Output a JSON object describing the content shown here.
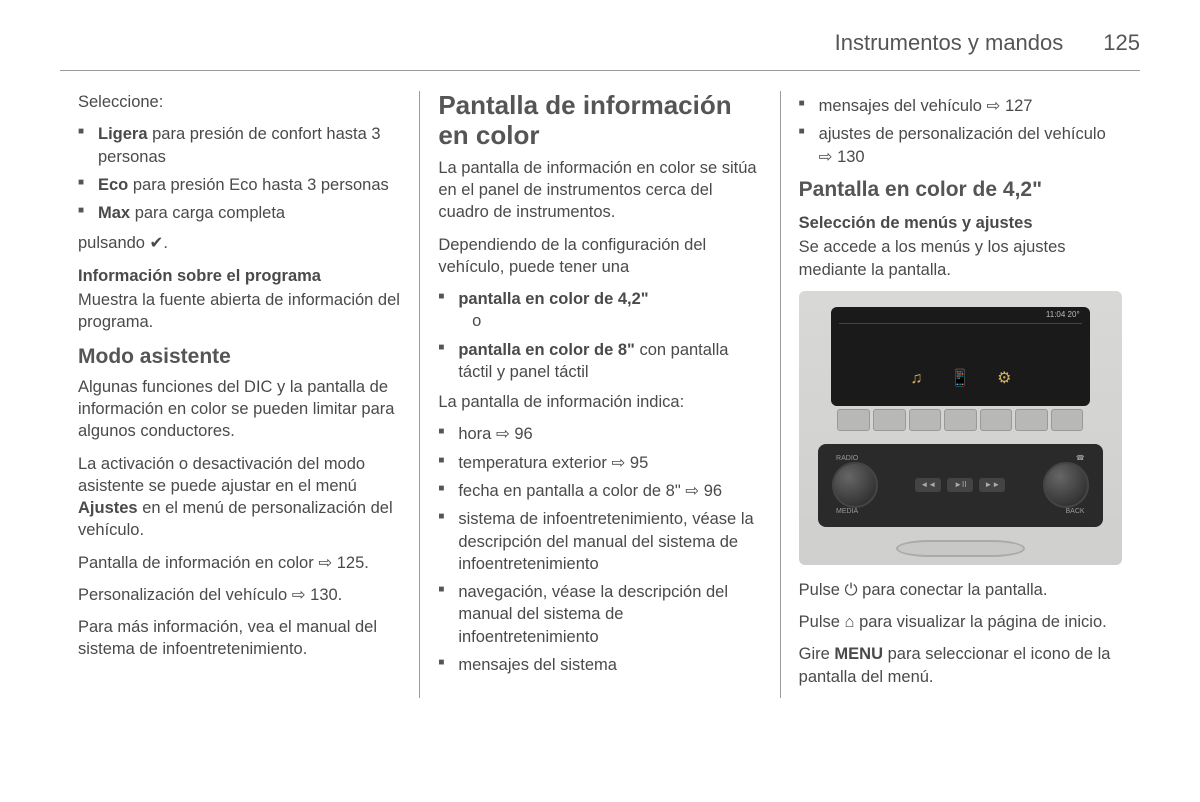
{
  "header": {
    "section": "Instrumentos y mandos",
    "page": "125"
  },
  "col1": {
    "select_label": "Seleccione:",
    "options": [
      {
        "bold": "Ligera",
        "rest": " para presión de confort hasta 3 personas"
      },
      {
        "bold": "Eco",
        "rest": " para presión Eco hasta 3 personas"
      },
      {
        "bold": "Max",
        "rest": " para carga completa"
      }
    ],
    "pressing": "pulsando ✔.",
    "info_head": "Información sobre el programa",
    "info_text": "Muestra la fuente abierta de información del programa.",
    "modo_head": "Modo asistente",
    "modo_p1": "Algunas funciones del DIC y la pantalla de información en color se pueden limitar para algunos conductores.",
    "modo_p2a": "La activación o desactivación del modo asistente se puede ajustar en el menú ",
    "modo_p2_bold": "Ajustes",
    "modo_p2b": " en el menú de personalización del vehículo.",
    "pant_line": "Pantalla de información en color ",
    "pant_ref": "125.",
    "pers_line": "Personalización del vehículo ",
    "pers_ref": "130.",
    "mas_info": "Para más información, vea el manual del sistema de infoentretenimiento."
  },
  "col2": {
    "title": "Pantalla de información en color",
    "p1": "La pantalla de información en color se sitúa en el panel de instrumentos cerca del cuadro de instrumentos.",
    "p2": "Dependiendo de la configuración del vehículo, puede tener una",
    "screens": [
      {
        "bold": "pantalla en color de 4,2\"",
        "rest": "   o"
      },
      {
        "bold": "pantalla en color de 8\"",
        "rest": " con pantalla táctil y panel táctil"
      }
    ],
    "indica": "La pantalla de información indica:",
    "items": [
      {
        "text": "hora ",
        "ref": "96"
      },
      {
        "text": "temperatura exterior ",
        "ref": "95"
      },
      {
        "text": "fecha en pantalla a color de 8\" ",
        "ref": "96"
      },
      {
        "text": "sistema de infoentretenimiento, véase la descripción del manual del sistema de infoentretenimiento",
        "ref": ""
      },
      {
        "text": "navegación, véase la descripción del manual del sistema de infoentretenimiento",
        "ref": ""
      },
      {
        "text": "mensajes del sistema",
        "ref": ""
      }
    ]
  },
  "col3": {
    "cont": [
      {
        "text": "mensajes del vehículo ",
        "ref": "127"
      },
      {
        "text": "ajustes de personalización del vehículo ",
        "ref": "130"
      }
    ],
    "title": "Pantalla en color de 4,2\"",
    "subhead": "Selección de menús y ajustes",
    "sub_p": "Se accede a los menús y los ajustes mediante la pantalla.",
    "fig_time": "11:04 20°",
    "knob_labels": {
      "tl": "RADIO",
      "bl": "MEDIA",
      "tr": "☎",
      "br": "BACK"
    },
    "p_power": "Pulse ⏻ para conectar la pantalla.",
    "p_home": "Pulse ⌂ para visualizar la página de inicio.",
    "p_menu_a": "Gire ",
    "p_menu_bold": "MENU",
    "p_menu_b": " para seleccionar el icono de la pantalla del menú."
  }
}
